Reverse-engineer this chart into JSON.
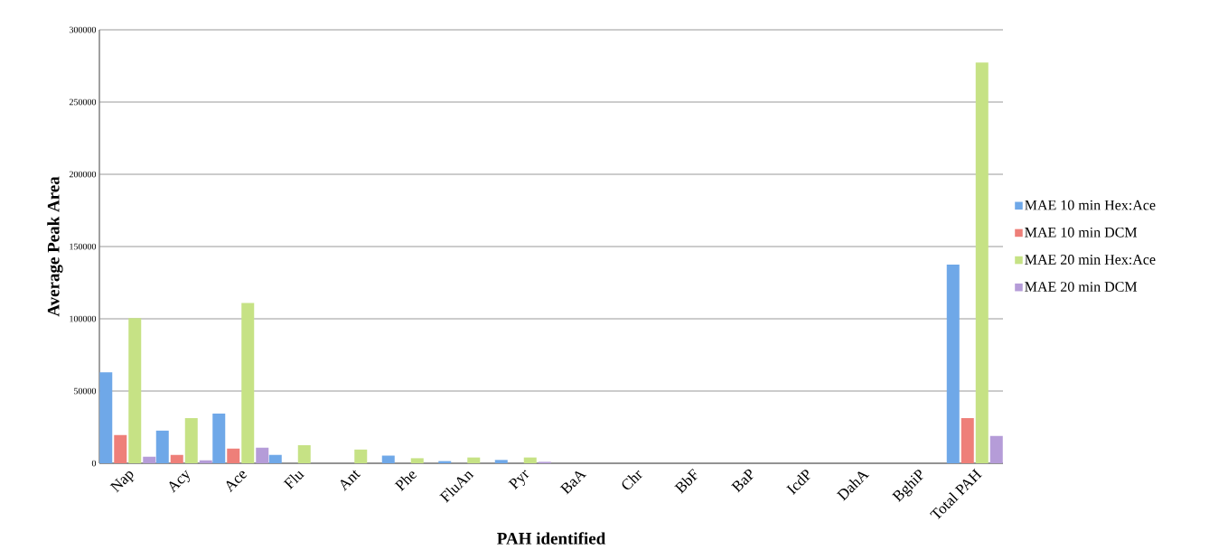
{
  "chart_data": {
    "type": "bar",
    "xlabel": "PAH identified",
    "ylabel": "Average Peak Area",
    "categories": [
      "Nap",
      "Acy",
      "Ace",
      "Flu",
      "Ant",
      "Phe",
      "FluAn",
      "Pyr",
      "BaA",
      "Chr",
      "BbF",
      "BaP",
      "IcdP",
      "DahA",
      "BghiP",
      "Total PAH"
    ],
    "series": [
      {
        "name": "MAE 10 min Hex:Ace",
        "color": "#6fa8e8",
        "values": [
          63000,
          22600,
          34400,
          5800,
          0,
          5300,
          1500,
          2300,
          0,
          0,
          0,
          0,
          0,
          0,
          0,
          137500
        ]
      },
      {
        "name": "MAE 10 min DCM",
        "color": "#ee7f79",
        "values": [
          19500,
          5800,
          10200,
          0,
          0,
          0,
          0,
          0,
          0,
          0,
          0,
          0,
          0,
          0,
          0,
          31200
        ]
      },
      {
        "name": "MAE 20 min Hex:Ace",
        "color": "#c6e285",
        "values": [
          100400,
          31300,
          111000,
          12500,
          9500,
          3500,
          4000,
          4000,
          0,
          0,
          0,
          0,
          0,
          0,
          0,
          277400
        ]
      },
      {
        "name": "MAE 20 min DCM",
        "color": "#b59cd8",
        "values": [
          4500,
          2000,
          10800,
          0,
          0,
          0,
          0,
          1000,
          0,
          0,
          0,
          0,
          0,
          0,
          0,
          18900
        ]
      }
    ],
    "ylim": [
      0,
      300000
    ],
    "yticks": [
      0,
      50000,
      100000,
      150000,
      200000,
      250000,
      300000
    ],
    "grid": "y",
    "legend": "right"
  }
}
